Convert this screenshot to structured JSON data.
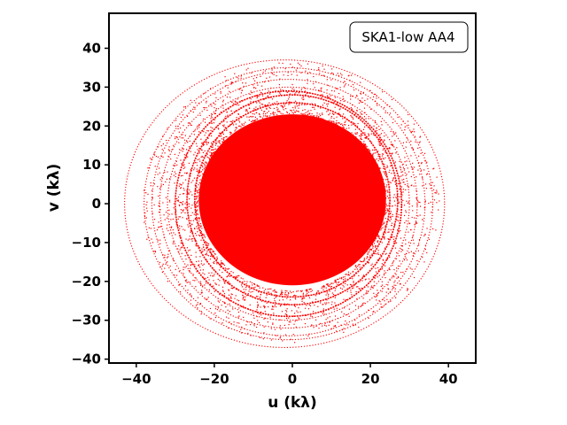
{
  "chart_data": {
    "type": "scatter",
    "title": "",
    "xlabel": "u (kλ)",
    "ylabel": "v (kλ)",
    "xlim": [
      -47,
      47
    ],
    "ylim": [
      -41,
      49
    ],
    "xticks": [
      -40,
      -20,
      0,
      20,
      40
    ],
    "yticks": [
      -40,
      -30,
      -20,
      -10,
      0,
      10,
      20,
      30,
      40
    ],
    "xtick_labels": [
      "−40",
      "−20",
      "0",
      "20",
      "40"
    ],
    "ytick_labels": [
      "−40",
      "−30",
      "−20",
      "−10",
      "0",
      "10",
      "20",
      "30",
      "40"
    ],
    "grid": false,
    "legend_position": "top-right",
    "series": [
      {
        "name": "SKA1-low AA4",
        "color": "#ff0000",
        "core_region": {
          "center": [
            0,
            1
          ],
          "u_semi_axis": 24,
          "v_semi_axis": 22
        },
        "tracks": [
          {
            "center": [
              0,
              1
            ],
            "u_semi_axis": 25,
            "v_semi_axis": 25
          },
          {
            "center": [
              0,
              1
            ],
            "u_semi_axis": 27,
            "v_semi_axis": 27
          },
          {
            "center": [
              -1,
              0
            ],
            "u_semi_axis": 29,
            "v_semi_axis": 29
          },
          {
            "center": [
              -1,
              0
            ],
            "u_semi_axis": 31,
            "v_semi_axis": 30
          },
          {
            "center": [
              -1,
              0
            ],
            "u_semi_axis": 33,
            "v_semi_axis": 32
          },
          {
            "center": [
              -1,
              0
            ],
            "u_semi_axis": 35,
            "v_semi_axis": 34
          },
          {
            "center": [
              -1,
              0
            ],
            "u_semi_axis": 37,
            "v_semi_axis": 35
          },
          {
            "center": [
              -2,
              0
            ],
            "u_semi_axis": 41,
            "v_semi_axis": 37
          }
        ]
      }
    ]
  }
}
